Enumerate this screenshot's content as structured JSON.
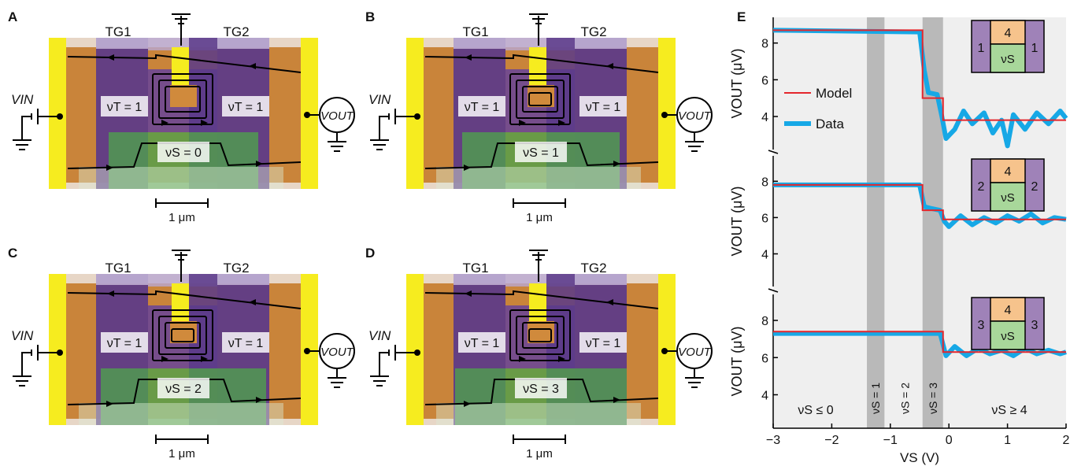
{
  "panels": [
    {
      "letter": "A",
      "tg_left": "TG1",
      "tg_right": "TG2",
      "nu_t_left": "νT = 1",
      "nu_t_right": "νT = 1",
      "nu_s": "νS = 0",
      "v_in": "VIN",
      "v_out": "VOUT",
      "scale": "1 μm"
    },
    {
      "letter": "B",
      "tg_left": "TG1",
      "tg_right": "TG2",
      "nu_t_left": "νT = 1",
      "nu_t_right": "νT = 1",
      "nu_s": "νS = 1",
      "v_in": "VIN",
      "v_out": "VOUT",
      "scale": "1 μm"
    },
    {
      "letter": "C",
      "tg_left": "TG1",
      "tg_right": "TG2",
      "nu_t_left": "νT = 1",
      "nu_t_right": "νT = 1",
      "nu_s": "νS = 2",
      "v_in": "VIN",
      "v_out": "VOUT",
      "scale": "1 μm"
    },
    {
      "letter": "D",
      "tg_left": "TG1",
      "tg_right": "TG2",
      "nu_t_left": "νT = 1",
      "nu_t_right": "νT = 1",
      "nu_s": "νS = 3",
      "v_in": "VIN",
      "v_out": "VOUT",
      "scale": "1 μm"
    }
  ],
  "panel_e": {
    "letter": "E",
    "legend": {
      "model": "Model",
      "data": "Data"
    },
    "colors": {
      "model": "#e4262c",
      "data": "#16a8e6",
      "band": "#b9b9b9",
      "bg": "#efefef",
      "purple": "#9f82b8",
      "orange": "#f6c38c",
      "green": "#a8d79a"
    },
    "region_labels": [
      "νS ≤ 0",
      "νS = 1",
      "νS = 2",
      "νS = 3",
      "νS ≥ 4"
    ],
    "insets": [
      {
        "side": "1",
        "top": "4",
        "bottom": "νS"
      },
      {
        "side": "2",
        "top": "4",
        "bottom": "νS"
      },
      {
        "side": "3",
        "top": "4",
        "bottom": "νS"
      }
    ],
    "chart_data": {
      "type": "line",
      "xlabel": "VS (V)",
      "ylabel": "VOUT (μV)",
      "xlim": [
        -3,
        2
      ],
      "x_ticks": [
        -3,
        -2,
        -1,
        0,
        1,
        2
      ],
      "x_tick_labels": [
        "−3",
        "−2",
        "−1",
        "0",
        "1",
        "2"
      ],
      "bands": [
        [
          -1.4,
          -1.1
        ],
        [
          -0.45,
          -0.1
        ]
      ],
      "subplots": [
        {
          "ylim": [
            2.2,
            9.4
          ],
          "y_ticks": [
            4,
            6,
            8
          ],
          "model": {
            "x": [
              -3,
              -0.45,
              -0.45,
              -0.1,
              -0.1,
              2
            ],
            "y": [
              8.7,
              8.7,
              5.0,
              5.0,
              3.8,
              3.8
            ]
          },
          "data": {
            "x": [
              -3,
              -0.5,
              -0.42,
              -0.35,
              -0.2,
              -0.12,
              -0.05,
              0.1,
              0.25,
              0.4,
              0.6,
              0.75,
              0.9,
              1.0,
              1.1,
              1.3,
              1.5,
              1.7,
              1.9,
              2.0
            ],
            "y": [
              8.7,
              8.6,
              6.5,
              5.3,
              5.2,
              4.0,
              2.8,
              3.3,
              4.3,
              3.6,
              4.2,
              3.1,
              3.8,
              2.4,
              4.1,
              3.3,
              4.2,
              3.6,
              4.3,
              3.9
            ]
          }
        },
        {
          "ylim": [
            2.2,
            9.4
          ],
          "y_ticks": [
            4,
            6,
            8
          ],
          "model": {
            "x": [
              -3,
              -0.45,
              -0.45,
              -0.1,
              -0.1,
              2
            ],
            "y": [
              7.8,
              7.8,
              6.4,
              6.4,
              5.9,
              5.9
            ]
          },
          "data": {
            "x": [
              -3,
              -0.5,
              -0.42,
              -0.3,
              -0.15,
              -0.08,
              0.0,
              0.2,
              0.4,
              0.6,
              0.8,
              1.0,
              1.2,
              1.4,
              1.6,
              1.8,
              2.0
            ],
            "y": [
              7.8,
              7.8,
              6.6,
              6.5,
              6.4,
              5.8,
              5.5,
              6.1,
              5.6,
              6.0,
              5.7,
              6.1,
              5.8,
              6.2,
              5.7,
              6.0,
              5.9
            ]
          }
        },
        {
          "ylim": [
            2.2,
            9.4
          ],
          "y_ticks": [
            4,
            6,
            8
          ],
          "model": {
            "x": [
              -3,
              -0.1,
              -0.1,
              2
            ],
            "y": [
              7.4,
              7.4,
              6.3,
              6.3
            ]
          },
          "data": {
            "x": [
              -3,
              -0.15,
              -0.05,
              0.1,
              0.3,
              0.5,
              0.7,
              0.9,
              1.1,
              1.3,
              1.5,
              1.7,
              1.9,
              2.0
            ],
            "y": [
              7.3,
              7.3,
              6.1,
              6.6,
              6.1,
              6.5,
              6.2,
              6.4,
              6.1,
              6.5,
              6.2,
              6.4,
              6.2,
              6.3
            ]
          }
        }
      ]
    }
  }
}
